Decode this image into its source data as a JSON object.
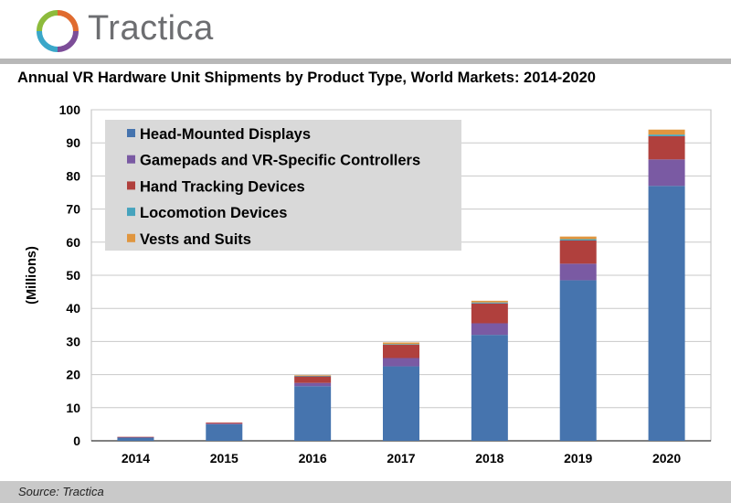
{
  "brand": {
    "name": "Tractica"
  },
  "chart_data": {
    "type": "bar",
    "stacked": true,
    "title": "Annual VR Hardware Unit Shipments by Product Type, World Markets: 2014-2020",
    "xlabel": "",
    "ylabel": "(Millions)",
    "ylim": [
      0,
      100
    ],
    "yticks": [
      0,
      10,
      20,
      30,
      40,
      50,
      60,
      70,
      80,
      90,
      100
    ],
    "grid": true,
    "legend_position": "top-left",
    "categories": [
      "2014",
      "2015",
      "2016",
      "2017",
      "2018",
      "2019",
      "2020"
    ],
    "series": [
      {
        "name": "Head-Mounted Displays",
        "color": "#4674ae",
        "values": [
          1.0,
          5.0,
          16.5,
          22.5,
          32.0,
          48.5,
          77.0
        ]
      },
      {
        "name": "Gamepads and VR-Specific Controllers",
        "color": "#7a5aa3",
        "values": [
          0.1,
          0.2,
          1.0,
          2.5,
          3.5,
          5.0,
          8.0
        ]
      },
      {
        "name": "Hand Tracking Devices",
        "color": "#b0403d",
        "values": [
          0.1,
          0.3,
          2.0,
          4.0,
          6.0,
          7.0,
          7.0
        ]
      },
      {
        "name": "Locomotion Devices",
        "color": "#46a3bd",
        "values": [
          0.0,
          0.0,
          0.1,
          0.2,
          0.3,
          0.4,
          0.5
        ]
      },
      {
        "name": "Vests and Suits",
        "color": "#e0963f",
        "values": [
          0.0,
          0.0,
          0.2,
          0.5,
          0.5,
          0.8,
          1.5
        ]
      }
    ]
  },
  "footer": {
    "source": "Source: Tractica"
  }
}
